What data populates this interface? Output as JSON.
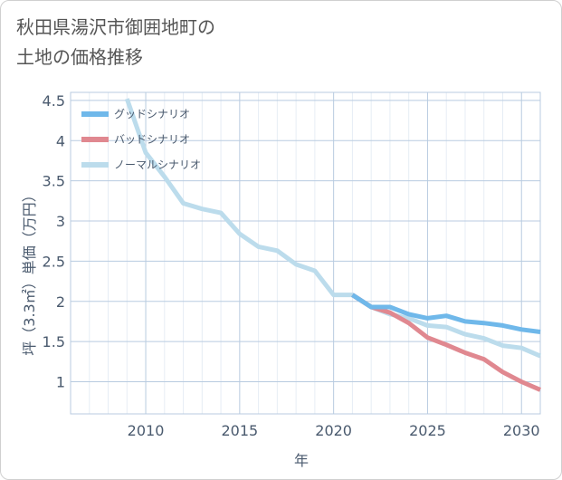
{
  "chart_data": {
    "type": "line",
    "title": "秋田県湯沢市御囲地町の土地の価格推移",
    "title_lines": [
      "秋田県湯沢市御囲地町の",
      "土地の価格推移"
    ],
    "xlabel": "年",
    "ylabel": "坪（3.3㎡）単価（万円）",
    "xlim": [
      2006,
      2031
    ],
    "ylim": [
      0.6,
      4.6
    ],
    "x_ticks": [
      2010,
      2015,
      2020,
      2025,
      2030
    ],
    "y_ticks": [
      1,
      1.5,
      2,
      2.5,
      3,
      3.5,
      4,
      4.5
    ],
    "grid": true,
    "legend_position": "top-left",
    "series": [
      {
        "name": "グッドシナリオ",
        "color": "#6fb8ea",
        "x": [
          2021,
          2022,
          2023,
          2024,
          2025,
          2026,
          2027,
          2028,
          2029,
          2030,
          2031
        ],
        "y": [
          2.08,
          1.93,
          1.93,
          1.84,
          1.79,
          1.82,
          1.75,
          1.73,
          1.7,
          1.65,
          1.62
        ]
      },
      {
        "name": "バッドシナリオ",
        "color": "#e08890",
        "x": [
          2021,
          2022,
          2023,
          2024,
          2025,
          2026,
          2027,
          2028,
          2029,
          2030,
          2031
        ],
        "y": [
          2.08,
          1.93,
          1.86,
          1.73,
          1.55,
          1.46,
          1.36,
          1.28,
          1.12,
          1.0,
          0.9
        ]
      },
      {
        "name": "ノーマルシナリオ",
        "color": "#bcdcec",
        "x": [
          2009,
          2010,
          2011,
          2012,
          2013,
          2014,
          2015,
          2016,
          2017,
          2018,
          2019,
          2020,
          2021,
          2022,
          2023,
          2024,
          2025,
          2026,
          2027,
          2028,
          2029,
          2030,
          2031
        ],
        "y": [
          4.52,
          3.85,
          3.55,
          3.22,
          3.15,
          3.1,
          2.84,
          2.68,
          2.63,
          2.46,
          2.38,
          2.08,
          2.08,
          1.93,
          1.84,
          1.79,
          1.7,
          1.68,
          1.59,
          1.54,
          1.45,
          1.42,
          1.32
        ]
      }
    ]
  }
}
